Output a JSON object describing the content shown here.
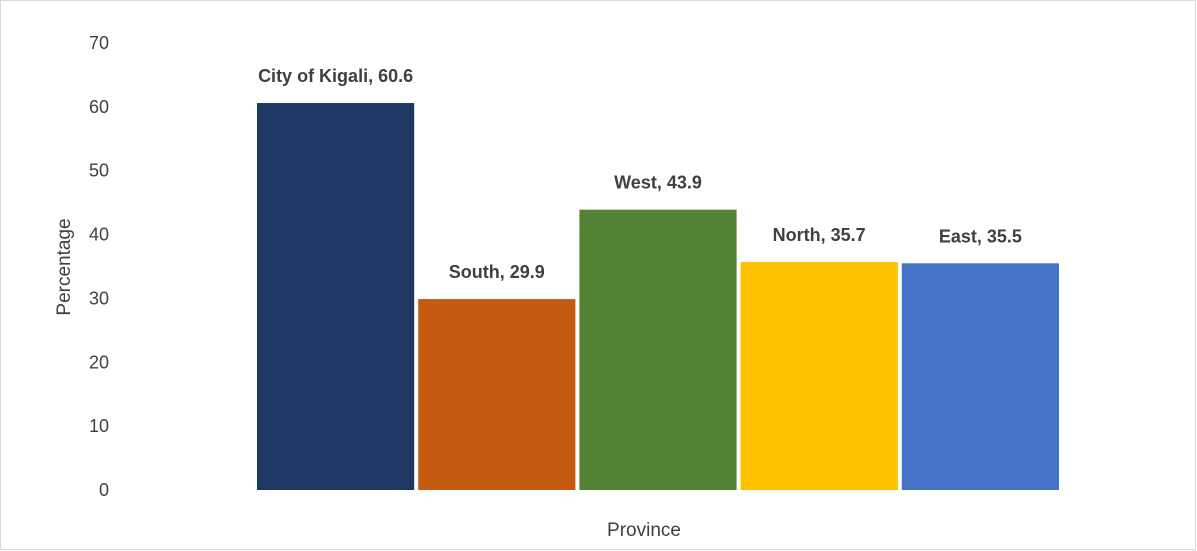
{
  "chart_data": {
    "type": "bar",
    "title": "",
    "xlabel": "Province",
    "ylabel": "Percentage",
    "ylim": [
      0,
      70
    ],
    "yticks": [
      0,
      10,
      20,
      30,
      40,
      50,
      60,
      70
    ],
    "grid": false,
    "legend": "none",
    "categories": [
      "City of Kigali",
      "South",
      "West",
      "North",
      "East"
    ],
    "values": [
      60.6,
      29.9,
      43.9,
      35.7,
      35.5
    ],
    "data_labels": [
      "City of Kigali, 60.6",
      "South, 29.9",
      "West, 43.9",
      "North, 35.7",
      "East, 35.5"
    ],
    "colors": [
      "#203864",
      "#C55A11",
      "#548235",
      "#FFC000",
      "#4472C4"
    ]
  }
}
